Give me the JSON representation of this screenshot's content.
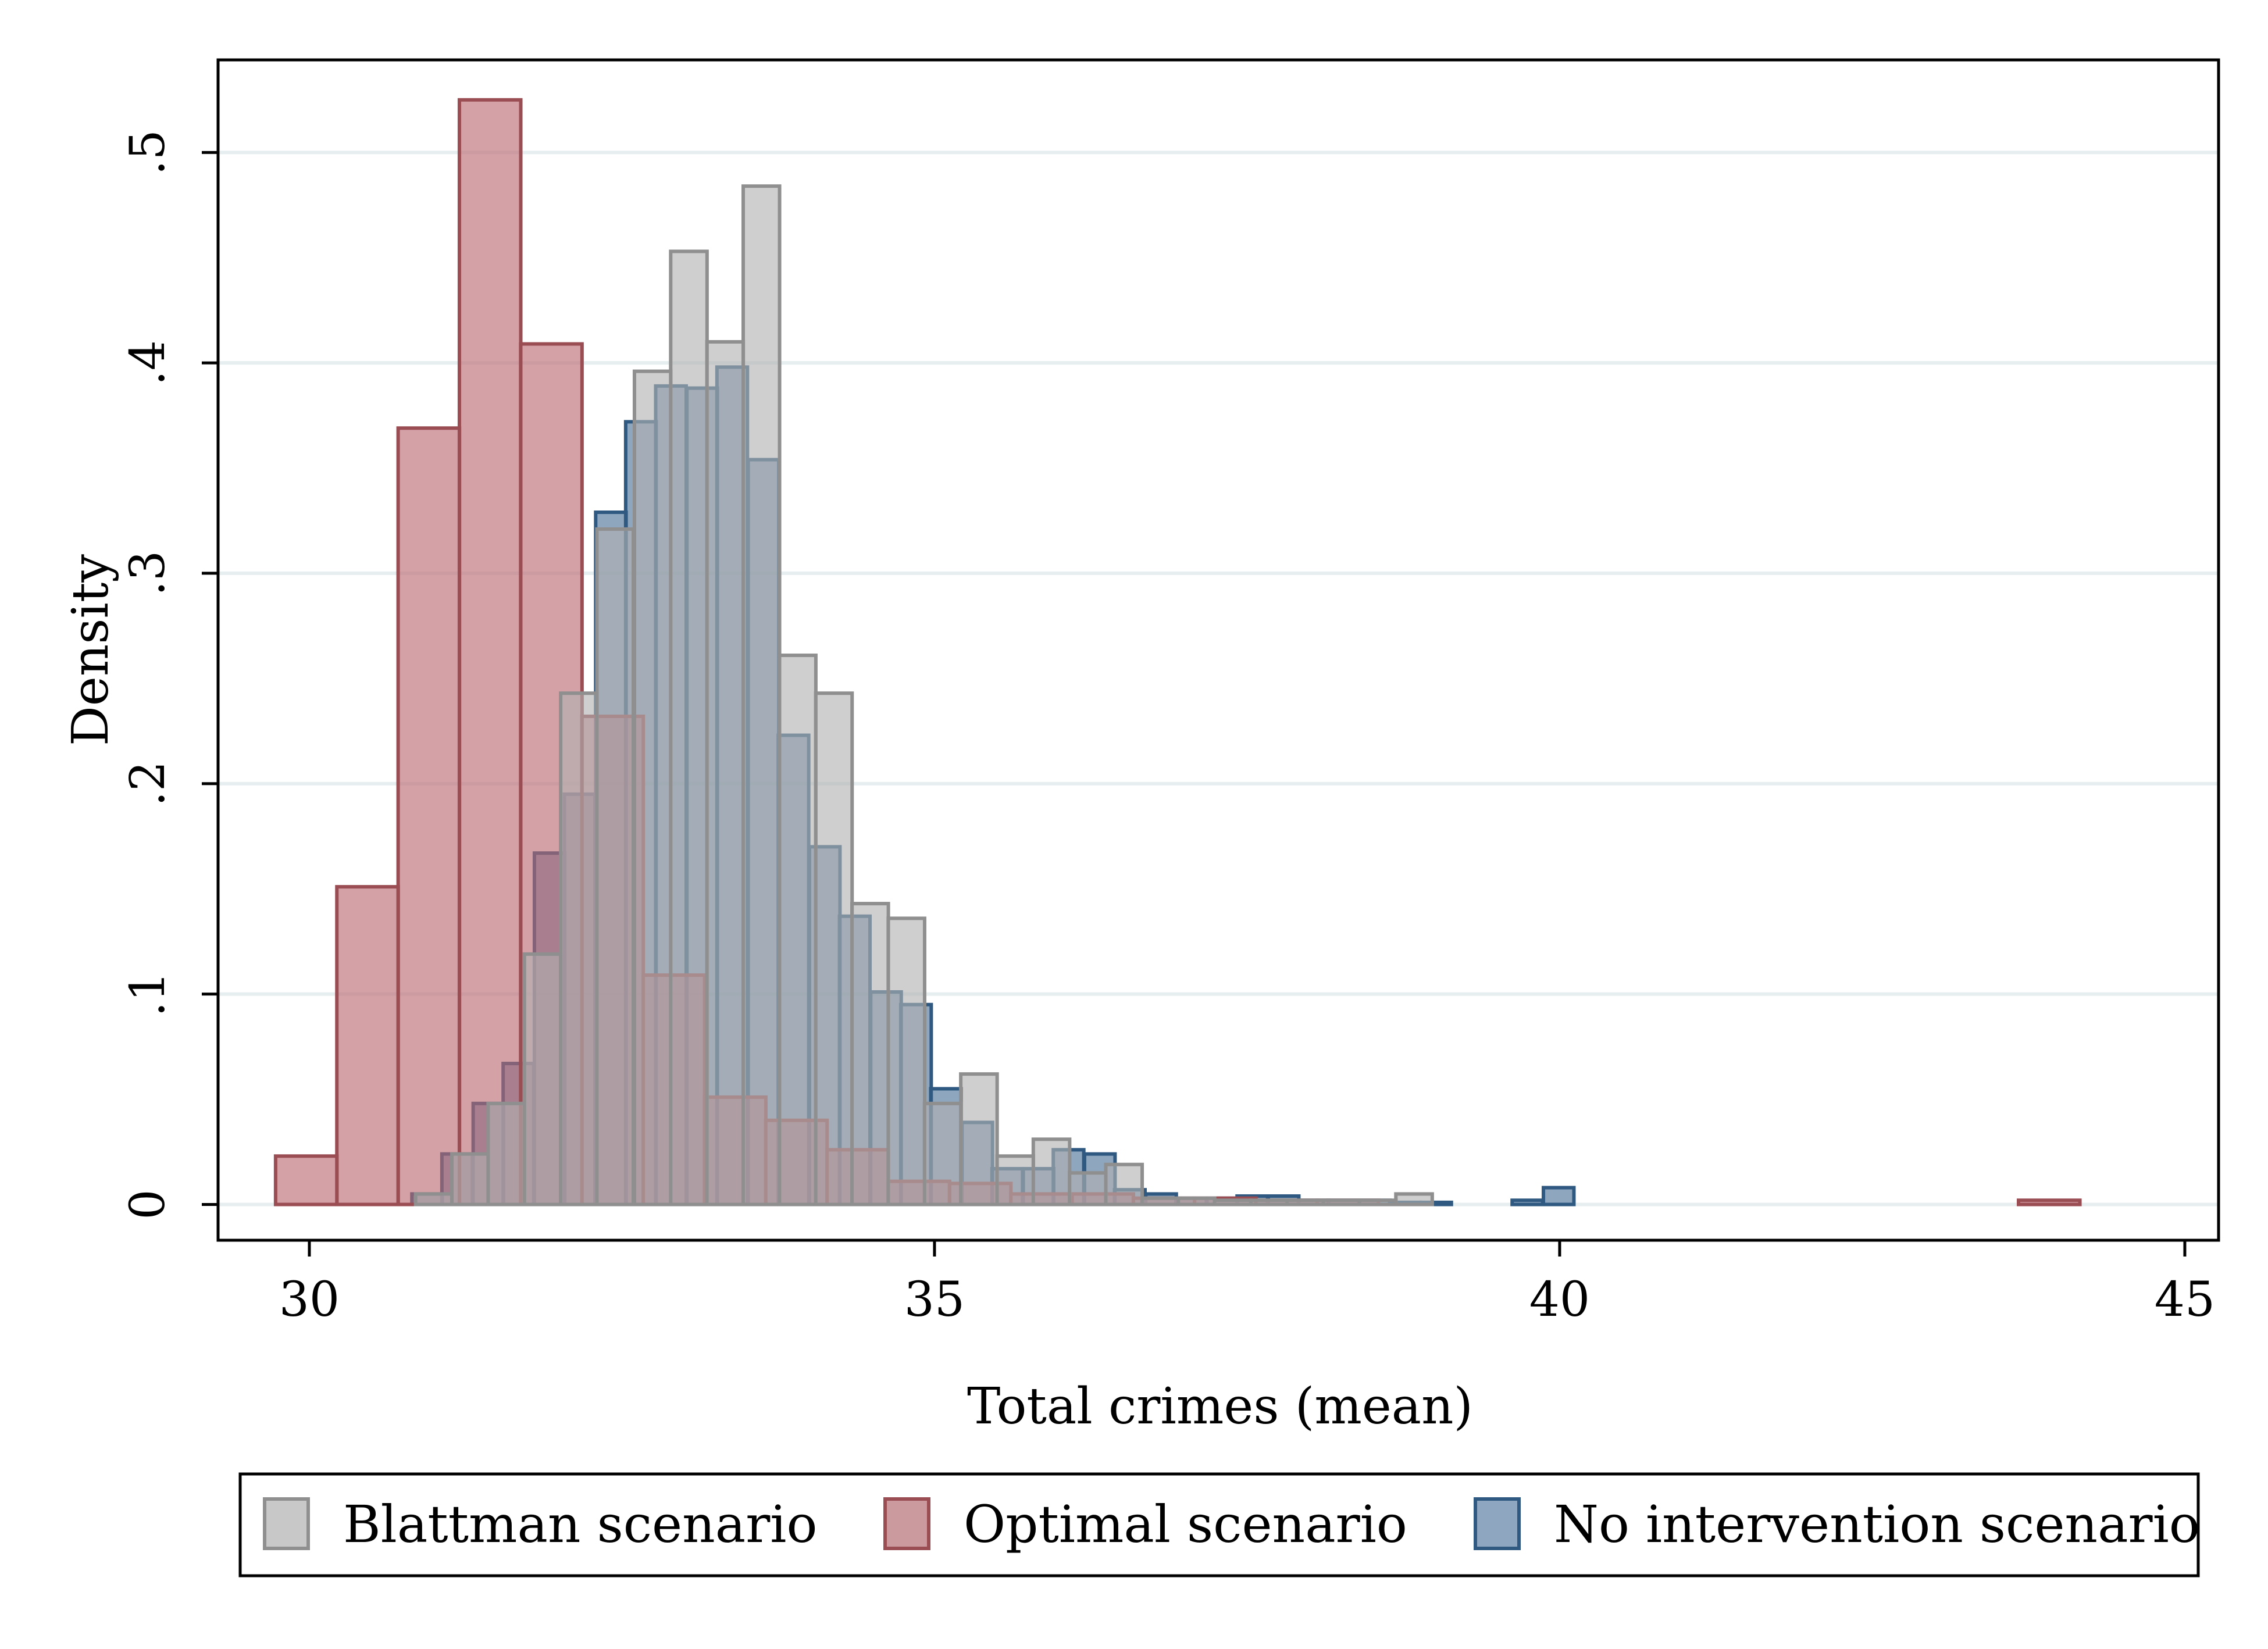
{
  "chart_data": {
    "type": "bar",
    "title": "",
    "xlabel": "Total crimes (mean)",
    "ylabel": "Density",
    "xlim": [
      29.27,
      45.27
    ],
    "ylim": [
      -0.017,
      0.544
    ],
    "xticks": [
      30,
      35,
      40,
      45
    ],
    "xtick_labels": [
      "30",
      "35",
      "40",
      "45"
    ],
    "yticks": [
      0,
      0.1,
      0.2,
      0.3,
      0.4,
      0.5
    ],
    "ytick_labels": [
      "0",
      ".1",
      ".2",
      ".3",
      ".4",
      ".5"
    ],
    "grid": true,
    "legend_position": "bottom",
    "series": [
      {
        "name": "No intervention scenario",
        "color": "#2f5981",
        "fill": "rgba(74,112,152,0.62)",
        "bin_width": 0.244,
        "bins": [
          [
            30.82,
            0.005
          ],
          [
            31.06,
            0.024
          ],
          [
            31.31,
            0.048
          ],
          [
            31.55,
            0.067
          ],
          [
            31.8,
            0.167
          ],
          [
            32.04,
            0.195
          ],
          [
            32.29,
            0.329
          ],
          [
            32.53,
            0.372
          ],
          [
            32.77,
            0.389
          ],
          [
            33.02,
            0.388
          ],
          [
            33.26,
            0.398
          ],
          [
            33.51,
            0.354
          ],
          [
            33.75,
            0.223
          ],
          [
            34.0,
            0.17
          ],
          [
            34.24,
            0.137
          ],
          [
            34.49,
            0.101
          ],
          [
            34.73,
            0.095
          ],
          [
            34.97,
            0.055
          ],
          [
            35.22,
            0.039
          ],
          [
            35.46,
            0.017
          ],
          [
            35.71,
            0.017
          ],
          [
            35.95,
            0.026
          ],
          [
            36.2,
            0.024
          ],
          [
            36.44,
            0.007
          ],
          [
            36.69,
            0.005
          ],
          [
            36.93,
            0.003
          ],
          [
            37.18,
            0.003
          ],
          [
            37.42,
            0.004
          ],
          [
            37.67,
            0.004
          ],
          [
            37.91,
            0.002
          ],
          [
            38.15,
            0.002
          ],
          [
            38.4,
            0.002
          ],
          [
            38.64,
            0.001
          ],
          [
            38.89,
            0.001
          ],
          [
            39.62,
            0.002
          ],
          [
            39.87,
            0.008
          ]
        ]
      },
      {
        "name": "Optimal scenario",
        "color": "#9a4d53",
        "fill": "rgba(185,103,113,0.62)",
        "bin_width": 0.491,
        "bins": [
          [
            29.73,
            0.023
          ],
          [
            30.22,
            0.151
          ],
          [
            30.71,
            0.369
          ],
          [
            31.2,
            0.525
          ],
          [
            31.69,
            0.409
          ],
          [
            32.18,
            0.232
          ],
          [
            32.67,
            0.109
          ],
          [
            33.16,
            0.051
          ],
          [
            33.65,
            0.04
          ],
          [
            34.14,
            0.026
          ],
          [
            34.63,
            0.011
          ],
          [
            35.12,
            0.01
          ],
          [
            35.61,
            0.005
          ],
          [
            36.1,
            0.005
          ],
          [
            36.59,
            0.003
          ],
          [
            37.08,
            0.003
          ],
          [
            37.57,
            0.002
          ],
          [
            38.06,
            0.002
          ],
          [
            43.67,
            0.002
          ]
        ]
      },
      {
        "name": "Blattman scenario",
        "color": "#8f8f8f",
        "fill": "rgba(178,178,178,0.62)",
        "bin_width": 0.291,
        "bins": [
          [
            30.85,
            0.005
          ],
          [
            31.14,
            0.024
          ],
          [
            31.43,
            0.048
          ],
          [
            31.72,
            0.119
          ],
          [
            32.01,
            0.243
          ],
          [
            32.3,
            0.321
          ],
          [
            32.6,
            0.396
          ],
          [
            32.89,
            0.453
          ],
          [
            33.18,
            0.41
          ],
          [
            33.47,
            0.484
          ],
          [
            33.76,
            0.261
          ],
          [
            34.05,
            0.243
          ],
          [
            34.34,
            0.143
          ],
          [
            34.63,
            0.136
          ],
          [
            34.92,
            0.048
          ],
          [
            35.21,
            0.062
          ],
          [
            35.5,
            0.023
          ],
          [
            35.79,
            0.031
          ],
          [
            36.08,
            0.015
          ],
          [
            36.37,
            0.019
          ],
          [
            36.66,
            0.003
          ],
          [
            36.95,
            0.003
          ],
          [
            37.24,
            0.002
          ],
          [
            37.53,
            0.002
          ],
          [
            37.82,
            0.002
          ],
          [
            38.11,
            0.002
          ],
          [
            38.4,
            0.002
          ],
          [
            38.69,
            0.005
          ]
        ]
      }
    ]
  },
  "legend": {
    "items": [
      {
        "label": "Blattman scenario",
        "color": "#8f8f8f",
        "fill": "#c8c8c8"
      },
      {
        "label": "Optimal scenario",
        "color": "#9a4d53",
        "fill": "#cb9a9f"
      },
      {
        "label": "No intervention scenario",
        "color": "#2f5981",
        "fill": "#8ea6bf"
      }
    ]
  }
}
